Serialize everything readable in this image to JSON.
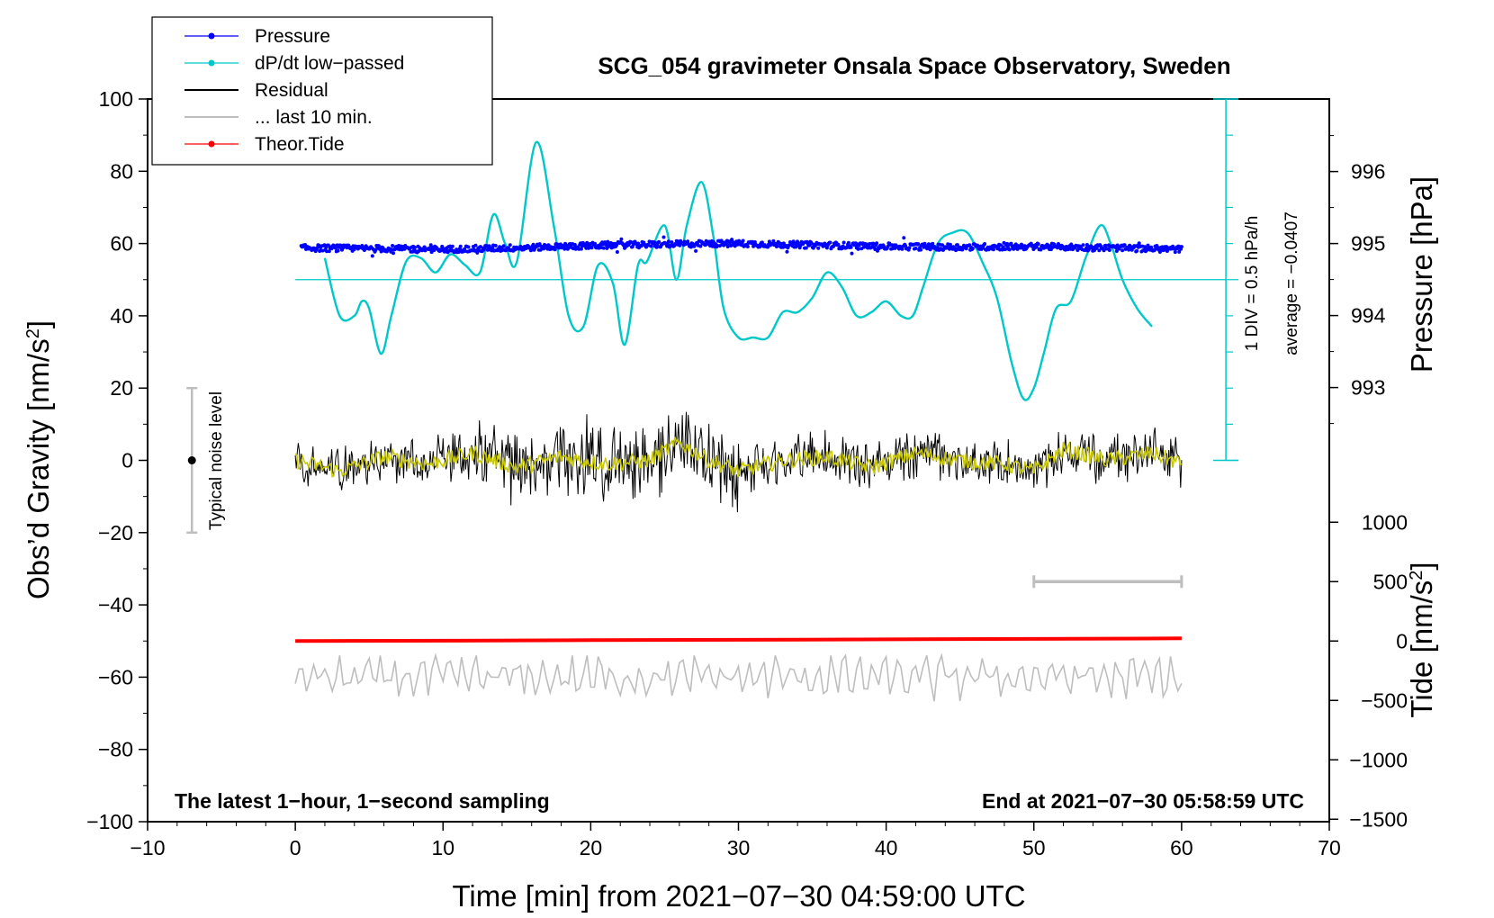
{
  "chart_data": {
    "type": "line",
    "title": "SCG_054 gravimeter Onsala Space Observatory, Sweden",
    "xlabel": "Time [min] from 2021−07−30 04:59:00 UTC",
    "ylabel_left": "Obs’d Gravity [nm/s",
    "ylabel_left_sup": "2",
    "ylabel_left_tail": "]",
    "ylabel_right_pressure": "Pressure [hPa]",
    "ylabel_right_tide": "Tide [nm/s",
    "ylabel_right_tide_sup": "2",
    "ylabel_right_tide_tail": "]",
    "footer_left": "The latest 1−hour, 1−second sampling",
    "footer_right": "End at 2021−07−30 05:58:59 UTC",
    "xlim": [
      -10,
      70
    ],
    "ylim": [
      -100,
      100
    ],
    "x_ticks": [
      "−10",
      "0",
      "10",
      "20",
      "30",
      "40",
      "50",
      "60",
      "70"
    ],
    "y_ticks": [
      "−100",
      "−80",
      "−60",
      "−40",
      "−20",
      "0",
      "20",
      "40",
      "60",
      "80",
      "100"
    ],
    "pressure_ticks": [
      "993",
      "994",
      "995",
      "996"
    ],
    "pressure_tick_values": [
      993,
      994,
      995,
      996
    ],
    "pressure_range": [
      992,
      997
    ],
    "tide_ticks": [
      "1000",
      "500",
      "0",
      "−500",
      "−1000",
      "−1500"
    ],
    "tide_tick_values": [
      1000,
      500,
      0,
      -500,
      -1000,
      -1500
    ],
    "tide_range": [
      -1500,
      1500
    ],
    "dpdt_scale_label": "1 DIV = 0.5 hPa/h",
    "dpdt_average_label": "average = −0.0407",
    "noise_label": "Typical noise level",
    "noise_bar": {
      "x": -7,
      "center": 0,
      "half_range": 20
    },
    "last10_bar": {
      "x_start": 50,
      "x_end": 60,
      "tide_level": 500
    },
    "legend": [
      {
        "label": "Pressure",
        "color": "#0000ff",
        "style": "line-dot"
      },
      {
        "label": "dP/dt low−passed",
        "color": "#00c8c8",
        "style": "line-dot"
      },
      {
        "label": "Residual",
        "color": "#000000",
        "style": "line"
      },
      {
        "label": "... last 10 min.",
        "color": "#bebebe",
        "style": "line"
      },
      {
        "label": "Theor.Tide",
        "color": "#ff0000",
        "style": "line-dot"
      }
    ],
    "series": [
      {
        "name": "Pressure",
        "axis": "pressure_hPa",
        "color": "#0000ff",
        "x": [
          0,
          5,
          10,
          15,
          20,
          25,
          30,
          35,
          40,
          45,
          50,
          55,
          60
        ],
        "values": [
          994.94,
          994.93,
          994.92,
          994.94,
          994.97,
          994.99,
          995.0,
          994.98,
          994.96,
          994.95,
          994.96,
          994.94,
          994.92
        ]
      },
      {
        "name": "dP/dt low-passed",
        "axis": "gravity_nm_s2",
        "color": "#00c8c8",
        "baseline": 50,
        "x": [
          2,
          3,
          4,
          4.5,
          5,
          5.8,
          6.5,
          7.5,
          8.5,
          9.5,
          10.5,
          11.5,
          12.5,
          13.4,
          14.2,
          15,
          16.3,
          17.5,
          18.5,
          19.5,
          20.5,
          21.5,
          22.3,
          23.2,
          23.8,
          25,
          25.8,
          26.5,
          27.5,
          28.3,
          29,
          30,
          31,
          32,
          33,
          34,
          35,
          36,
          37,
          38,
          39,
          40,
          41,
          41.8,
          42.5,
          43.5,
          44.5,
          45.5,
          46.5,
          47.5,
          48.5,
          49.3,
          50,
          50.7,
          51.5,
          52.5,
          53.5,
          54.5,
          55.2,
          56,
          57,
          58
        ],
        "values": [
          56,
          40,
          40,
          44,
          42,
          29.5,
          40,
          55,
          56,
          52,
          57,
          54,
          52,
          68,
          60,
          55,
          88,
          65,
          40,
          37,
          54,
          49,
          32,
          54,
          55,
          65,
          50,
          65,
          77,
          62,
          42,
          34,
          34,
          34,
          41,
          41,
          45,
          52,
          48,
          40,
          41,
          44,
          40,
          40,
          48,
          60,
          63,
          63,
          55,
          45,
          27,
          17,
          20,
          30,
          42,
          44,
          56,
          65,
          60,
          50,
          42,
          37
        ]
      },
      {
        "name": "Residual",
        "axis": "gravity_nm_s2",
        "color": "#000000",
        "x": [
          0,
          60
        ],
        "amplitude_range": [
          -21,
          19
        ]
      },
      {
        "name": "Residual low-passed",
        "axis": "gravity_nm_s2",
        "color": "#c8c800",
        "x": [
          0,
          3,
          6,
          9,
          12,
          15,
          18,
          21,
          24,
          26,
          28,
          30,
          33,
          36,
          39,
          42,
          45,
          48,
          50,
          52,
          55,
          58,
          60
        ],
        "values": [
          0,
          -3,
          1,
          -1,
          2,
          -2,
          1,
          -1,
          0,
          5,
          0,
          -3,
          0,
          1,
          -2,
          2,
          0,
          -1,
          -3,
          3,
          0,
          2,
          -1
        ]
      },
      {
        "name": "... last 10 min.",
        "axis": "gravity_nm_s2",
        "color": "#bebebe",
        "x": [
          0,
          60
        ],
        "level": -60,
        "amplitude_range": [
          -71,
          -54
        ]
      },
      {
        "name": "Theor.Tide",
        "axis": "tide_nm_s2",
        "color": "#ff0000",
        "x": [
          0,
          10,
          20,
          30,
          40,
          50,
          60
        ],
        "values": [
          0,
          3,
          7,
          10,
          14,
          18,
          22
        ]
      }
    ]
  }
}
